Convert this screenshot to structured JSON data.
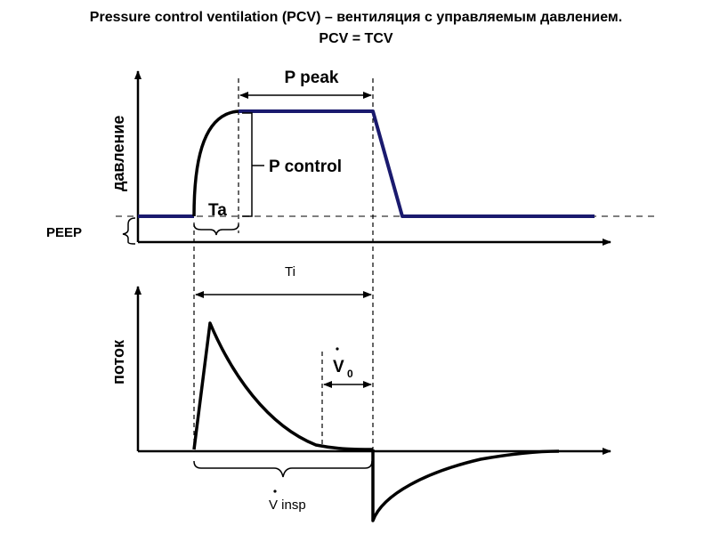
{
  "title": {
    "line1": "Pressure control ventilation (PCV) – вентиляция с управляемым давлением.",
    "line2": "PCV = TCV"
  },
  "labels": {
    "pressure_axis": "давление",
    "flow_axis": "поток",
    "peep": "PEEP",
    "p_peak": "P peak",
    "p_control": "P control",
    "ta": "Ta",
    "ti": "Ti",
    "v0": "V",
    "v0_sub": "0",
    "v_insp": "V insp"
  },
  "colors": {
    "pressure_curve": "#1a1a6e",
    "axes": "#000000",
    "dashed": "#555555"
  }
}
